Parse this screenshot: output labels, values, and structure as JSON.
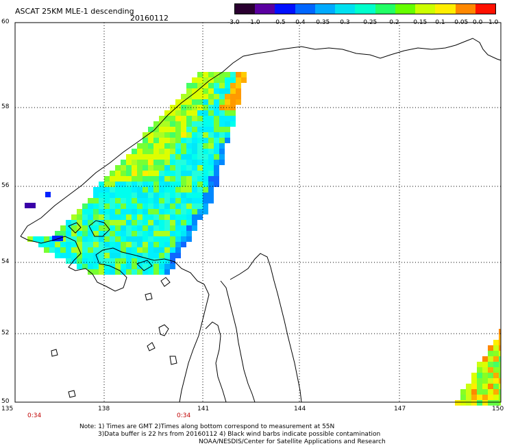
{
  "header": {
    "title": "ASCAT 25KM MLE-1 descending",
    "date": "20160112"
  },
  "colorbar": {
    "labels": [
      "-3.0",
      "-1.0",
      "-0.5",
      "-0.4",
      "-0.35",
      "-0.3",
      "-0.25",
      "-0.2",
      "-0.15",
      "-0.1",
      "-0.05",
      "0.0",
      "1.0"
    ],
    "colors": [
      "#2a0030",
      "#5a00a0",
      "#0010ff",
      "#0066ff",
      "#00aaff",
      "#00e0f0",
      "#00ffcc",
      "#22ff66",
      "#66ff00",
      "#ccff00",
      "#ffee00",
      "#ff8800",
      "#ff1100"
    ]
  },
  "axes": {
    "lat_labels": [
      "60",
      "58",
      "56",
      "54",
      "52",
      "50"
    ],
    "lon_labels": [
      "135",
      "138",
      "141",
      "144",
      "147",
      "150"
    ]
  },
  "times": [
    "0:34",
    "0:34"
  ],
  "notes": [
    "Note: 1) Times are GMT 2)Times along bottom correspond to measurement at 55N",
    "3)Data buffer is 22 hrs from 20160112 4) Black wind barbs indicate possible contamination",
    "NOAA/NESDIS/Center for Satellite Applications and Research"
  ]
}
